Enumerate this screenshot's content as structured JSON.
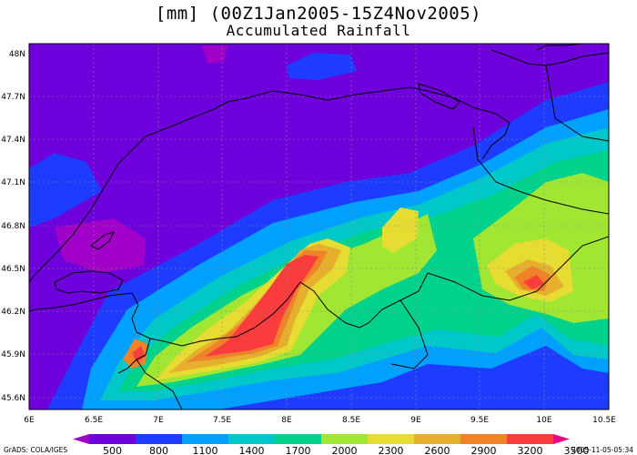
{
  "title": {
    "line1": "[mm] (00Z1Jan2005-15Z4Nov2005)",
    "line2": "Accumulated Rainfall"
  },
  "lat_labels": [
    "48N",
    "47.7N",
    "47.4N",
    "47.1N",
    "46.8N",
    "46.5N",
    "46.2N",
    "45.9N",
    "45.6N"
  ],
  "lon_labels": [
    "6E",
    "6.5E",
    "7E",
    "7.5E",
    "8E",
    "8.5E",
    "9E",
    "9.5E",
    "10E",
    "10.5E"
  ],
  "colorbar": {
    "labels": [
      "500",
      "800",
      "1100",
      "1400",
      "1700",
      "2000",
      "2300",
      "2600",
      "2900",
      "3200",
      "3500"
    ],
    "colors": [
      "#a000c8",
      "#6e00dc",
      "#1e3cff",
      "#00a0ff",
      "#00c8c8",
      "#00d28c",
      "#a0e632",
      "#e6dc32",
      "#e6af2d",
      "#f08228",
      "#fa3c3c",
      "#f00082"
    ]
  },
  "footer": {
    "left": "GrADS: COLA/IGES",
    "right": "2005-11-05-05:34"
  },
  "map_data": {
    "type": "filled-contour-map",
    "lon_range": [
      6,
      10.5
    ],
    "lat_range": [
      45.55,
      48.05
    ],
    "field_range_mm": [
      500,
      3500
    ],
    "region": "Switzerland and surroundings",
    "maxima": [
      {
        "lon": 7.75,
        "lat": 46.1,
        "approx_mm": 3500
      },
      {
        "lon": 9.85,
        "lat": 46.35,
        "approx_mm": 3200
      },
      {
        "lon": 6.85,
        "lat": 45.88,
        "approx_mm": 3500
      }
    ]
  }
}
